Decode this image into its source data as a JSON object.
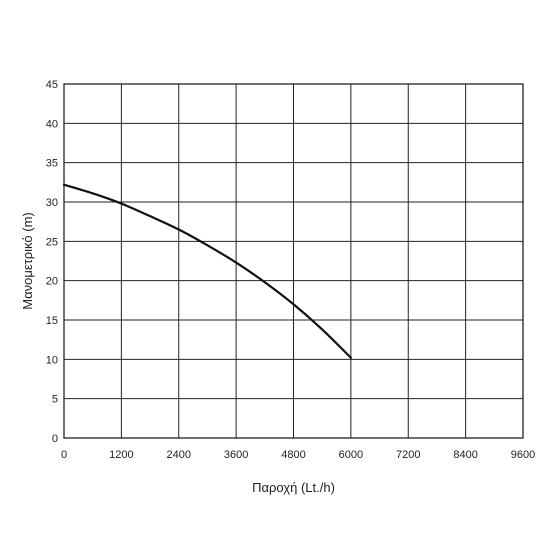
{
  "chart_data": {
    "type": "line",
    "title": "",
    "xlabel": "Παροχή (Lt./h)",
    "ylabel": "Μανομετρικό (m)",
    "xlim": [
      0,
      9600
    ],
    "ylim": [
      0,
      45
    ],
    "x_ticks": [
      "0",
      "1200",
      "2400",
      "3600",
      "4800",
      "6000",
      "7200",
      "8400",
      "9600"
    ],
    "y_ticks": [
      "0",
      "5",
      "10",
      "15",
      "20",
      "25",
      "30",
      "35",
      "40",
      "45"
    ],
    "grid": true,
    "legend": "none",
    "series": [
      {
        "x": [
          0,
          600,
          1200,
          1800,
          2400,
          3000,
          3600,
          4200,
          4800,
          5400,
          6000
        ],
        "y": [
          32.2,
          31.1,
          29.8,
          28.2,
          26.5,
          24.5,
          22.3,
          19.8,
          17.0,
          13.8,
          10.2
        ]
      }
    ]
  }
}
